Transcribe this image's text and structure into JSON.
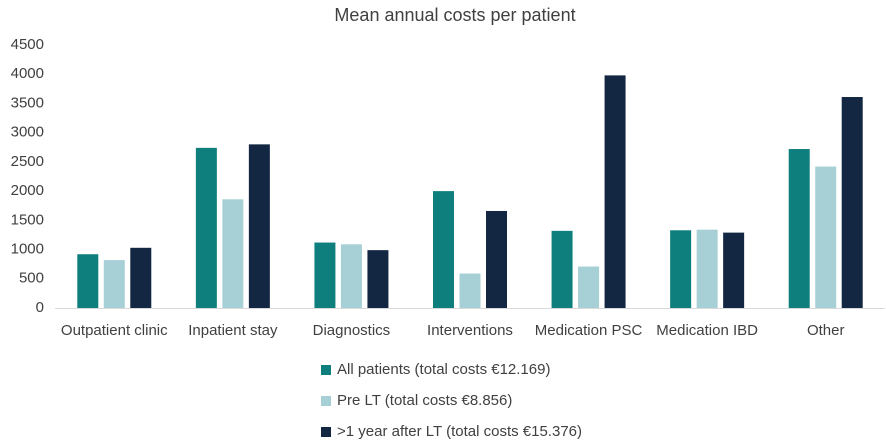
{
  "chart_data": {
    "type": "bar",
    "title": "Mean annual costs per patient",
    "categories": [
      "Outpatient clinic",
      "Inpatient stay",
      "Diagnostics",
      "Interventions",
      "Medication PSC",
      "Medication IBD",
      "Other"
    ],
    "series": [
      {
        "name": "All patients (total costs €12.169)",
        "color": "#0f7f7e",
        "values": [
          920,
          2740,
          1120,
          2000,
          1320,
          1330,
          2720
        ]
      },
      {
        "name": "Pre LT (total costs €8.856)",
        "color": "#a7d0d6",
        "values": [
          820,
          1860,
          1090,
          590,
          710,
          1340,
          2420
        ]
      },
      {
        "name": ">1 year after LT (total costs €15.376)",
        "color": "#132743",
        "values": [
          1030,
          2800,
          990,
          1660,
          3980,
          1290,
          3610
        ]
      }
    ],
    "ylim": [
      0,
      4500
    ],
    "yticks": [
      0,
      500,
      1000,
      1500,
      2000,
      2500,
      3000,
      3500,
      4000,
      4500
    ],
    "grid": false,
    "legend": "bottom"
  }
}
